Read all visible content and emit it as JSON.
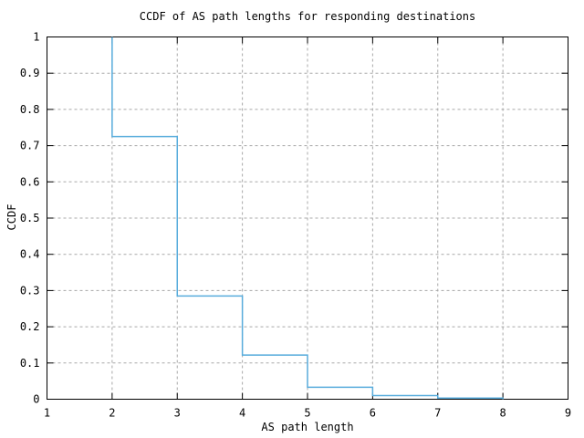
{
  "chart_data": {
    "type": "line",
    "subtype": "step",
    "title": "CCDF of AS path lengths for responding destinations",
    "xlabel": "AS path length",
    "ylabel": "CCDF",
    "xlim": [
      1,
      9
    ],
    "ylim": [
      0,
      1
    ],
    "xticks": [
      1,
      2,
      3,
      4,
      5,
      6,
      7,
      8,
      9
    ],
    "xtick_labels": [
      "1",
      "2",
      "3",
      "4",
      "5",
      "6",
      "7",
      "8",
      "9"
    ],
    "yticks": [
      0,
      0.1,
      0.2,
      0.3,
      0.4,
      0.5,
      0.6,
      0.7,
      0.8,
      0.9,
      1
    ],
    "ytick_labels": [
      "0",
      "0.1",
      "0.2",
      "0.3",
      "0.4",
      "0.5",
      "0.6",
      "0.7",
      "0.8",
      "0.9",
      "1"
    ],
    "grid": true,
    "grid_style": "dashed",
    "legend": "none",
    "colors": {
      "line": "#58acdc",
      "grid": "#a8a8a8",
      "axis": "#000000",
      "background": "#ffffff"
    },
    "series": [
      {
        "name": "ccdf",
        "points": [
          [
            2,
            1.0
          ],
          [
            2,
            0.725
          ],
          [
            3,
            0.725
          ],
          [
            3,
            0.285
          ],
          [
            4,
            0.285
          ],
          [
            4,
            0.122
          ],
          [
            5,
            0.122
          ],
          [
            5,
            0.033
          ],
          [
            6,
            0.033
          ],
          [
            6,
            0.01
          ],
          [
            7,
            0.01
          ],
          [
            7,
            0.003
          ],
          [
            8,
            0.003
          ],
          [
            8,
            0.0
          ]
        ]
      }
    ],
    "step_values": {
      "ccdf_at_2": 0.725,
      "ccdf_at_3": 0.285,
      "ccdf_at_4": 0.122,
      "ccdf_at_5": 0.033,
      "ccdf_at_6": 0.01,
      "ccdf_at_7": 0.003,
      "ccdf_at_8": 0.0
    }
  }
}
